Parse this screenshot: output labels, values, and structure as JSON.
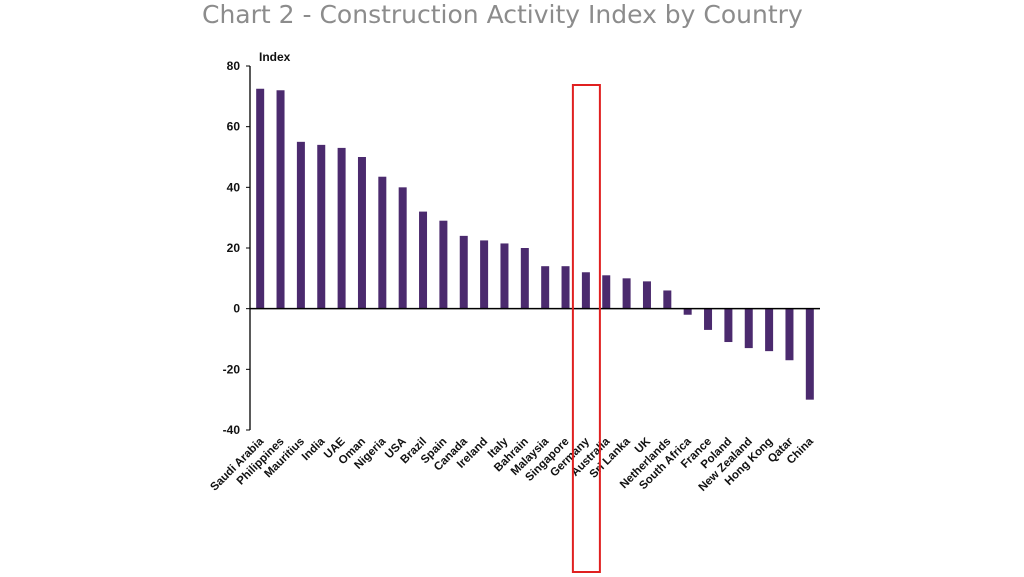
{
  "page_title": "Chart 2 - Construction Activity Index by Country",
  "colors": {
    "bar": "#4b2a6e",
    "highlight": "#e02020",
    "axis": "#000000"
  },
  "highlight": {
    "category": "Germany"
  },
  "chart_data": {
    "type": "bar",
    "title": "Chart 2 - Construction Activity Index by Country",
    "xlabel": "",
    "ylabel": "Index",
    "ylim": [
      -40,
      80
    ],
    "yticks": [
      "80",
      "60",
      "40",
      "20",
      "0",
      "-20",
      "-40"
    ],
    "grid": false,
    "categories": [
      "Saudi Arabia",
      "Philippines",
      "Mauritius",
      "India",
      "UAE",
      "Oman",
      "Nigeria",
      "USA",
      "Brazil",
      "Spain",
      "Canada",
      "Ireland",
      "Italy",
      "Bahrain",
      "Malaysia",
      "Singapore",
      "Germany",
      "Australia",
      "Sri Lanka",
      "UK",
      "Netherlands",
      "South Africa",
      "France",
      "Poland",
      "New Zealand",
      "Hong Kong",
      "Qatar",
      "China"
    ],
    "values": [
      72.5,
      72,
      55,
      54,
      53,
      50,
      43.5,
      40,
      32,
      29,
      24,
      22.5,
      21.5,
      20,
      14,
      14,
      12,
      11,
      10,
      9,
      6,
      -2,
      -7,
      -11,
      -13,
      -14,
      -17,
      -30
    ]
  }
}
